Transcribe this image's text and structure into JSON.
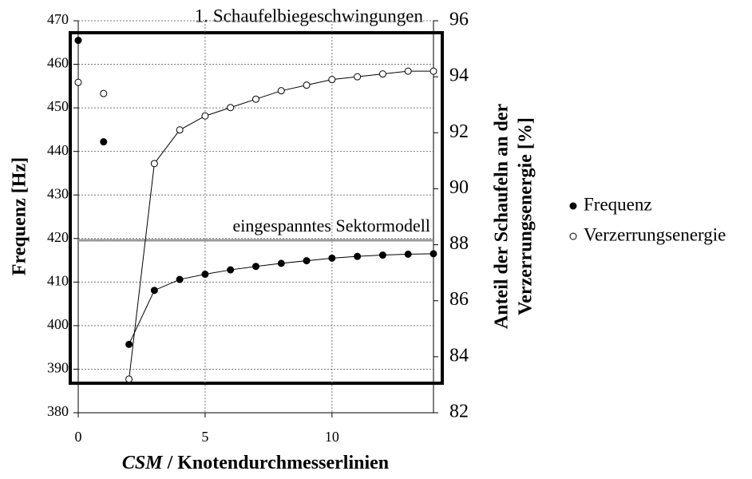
{
  "chart_data": {
    "type": "line",
    "title": "1. Schaufelbiegeschwingungen",
    "xlabel_italic": "CSM",
    "xlabel": " / Knotendurchmesserlinien",
    "ylabel": "Frequenz [Hz]",
    "y2label": [
      "Anteil der Schaufeln an der",
      "Verzerrungsenergie [%]"
    ],
    "x": [
      0,
      1,
      2,
      3,
      4,
      5,
      6,
      7,
      8,
      9,
      10,
      11,
      12,
      13,
      14
    ],
    "xlim": [
      0,
      14
    ],
    "xticks": [
      0,
      5,
      10
    ],
    "ylim": [
      380,
      470
    ],
    "yticks": [
      380,
      390,
      400,
      410,
      420,
      430,
      440,
      450,
      460,
      470
    ],
    "y2lim": [
      82,
      96
    ],
    "y2ticks": [
      82,
      84,
      86,
      88,
      90,
      92,
      94,
      96
    ],
    "grid": true,
    "line_x_start": 2,
    "series": [
      {
        "name": "Frequenz",
        "color": "#000000",
        "marker": "filled",
        "values": [
          465.5,
          442.2,
          395.7,
          408.1,
          410.6,
          411.8,
          412.8,
          413.6,
          414.3,
          414.9,
          415.5,
          415.9,
          416.2,
          416.4,
          416.5
        ]
      },
      {
        "name": "Verzerrungsenergie",
        "color": "#000000",
        "marker": "open",
        "axis": "y2",
        "values": [
          93.8,
          93.4,
          83.2,
          90.9,
          92.1,
          92.6,
          92.9,
          93.2,
          93.5,
          93.7,
          93.9,
          94.0,
          94.1,
          94.2,
          94.2
        ]
      }
    ],
    "reference": {
      "label": "eingespanntes Sektormodell",
      "value": 419.6,
      "color": "#999999"
    },
    "legend": "right"
  }
}
